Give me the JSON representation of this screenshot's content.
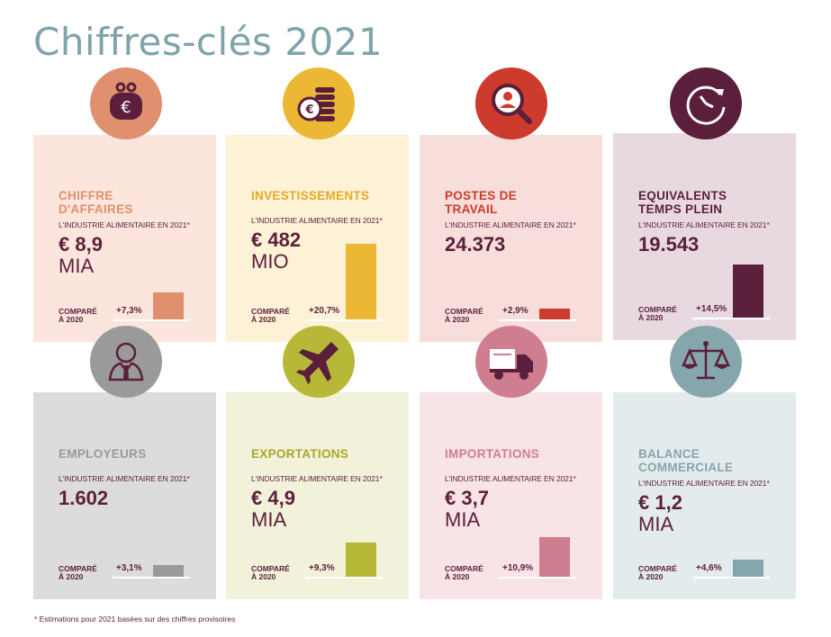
{
  "title": "Chiffres-clés 2021",
  "footnote": "* Estimations pour 2021 basées sur des chiffres provisoires",
  "subtitle": "L'INDUSTRIE ALIMENTAIRE EN 2021*",
  "compare_line1": "COMPARÉ",
  "compare_line2": "À 2020",
  "cards": [
    {
      "title_1": "CHIFFRE",
      "title_2": "D'AFFAIRES",
      "value": "€ 8,9",
      "unit": "MIA",
      "change": "+7,3%",
      "change_value": 7.3,
      "icon": "euro-purse-icon",
      "bg": "#fbe5dc",
      "accent": "#e0906e",
      "title_color": "#e0906e"
    },
    {
      "title_1": "INVESTISSEMENTS",
      "title_2": "",
      "value": "€ 482",
      "unit": "MIO",
      "change": "+20,7%",
      "change_value": 20.7,
      "icon": "coins-stack-icon",
      "bg": "#fdf1d6",
      "accent": "#ebb735",
      "title_color": "#e9a921"
    },
    {
      "title_1": "POSTES DE",
      "title_2": "TRAVAIL",
      "value": "24.373",
      "unit": "",
      "change": "+2,9%",
      "change_value": 2.9,
      "icon": "magnifier-person-icon",
      "bg": "#f7dedb",
      "accent": "#cc3b2c",
      "title_color": "#cc3b2c"
    },
    {
      "title_1": "EQUIVALENTS",
      "title_2": "TEMPS PLEIN",
      "value": "19.543",
      "unit": "",
      "change": "+14,5%",
      "change_value": 14.5,
      "icon": "clock-arrow-icon",
      "bg": "#e8d9e0",
      "accent": "#5b1f3c",
      "title_color": "#5b1f3c"
    },
    {
      "title_1": "EMPLOYEURS",
      "title_2": "",
      "value": "1.602",
      "unit": "",
      "change": "+3,1%",
      "change_value": 3.1,
      "icon": "person-tie-icon",
      "bg": "#dcdcdc",
      "accent": "#9a9a9a",
      "title_color": "#9a9a9a"
    },
    {
      "title_1": "EXPORTATIONS",
      "title_2": "",
      "value": "€ 4,9",
      "unit": "MIA",
      "change": "+9,3%",
      "change_value": 9.3,
      "icon": "airplane-icon",
      "bg": "#f2f1da",
      "accent": "#b7b838",
      "title_color": "#a8a82a"
    },
    {
      "title_1": "IMPORTATIONS",
      "title_2": "",
      "value": "€ 3,7",
      "unit": "MIA",
      "change": "+10,9%",
      "change_value": 10.9,
      "icon": "truck-icon",
      "bg": "#f8e3e6",
      "accent": "#cf7e90",
      "title_color": "#cf7e90"
    },
    {
      "title_1": "BALANCE",
      "title_2": "COMMERCIALE",
      "value": "€ 1,2",
      "unit": "MIA",
      "change": "+4,6%",
      "change_value": 4.6,
      "icon": "scale-icon",
      "bg": "#e4ebed",
      "accent": "#86a6ad",
      "title_color": "#86a6ad"
    }
  ]
}
